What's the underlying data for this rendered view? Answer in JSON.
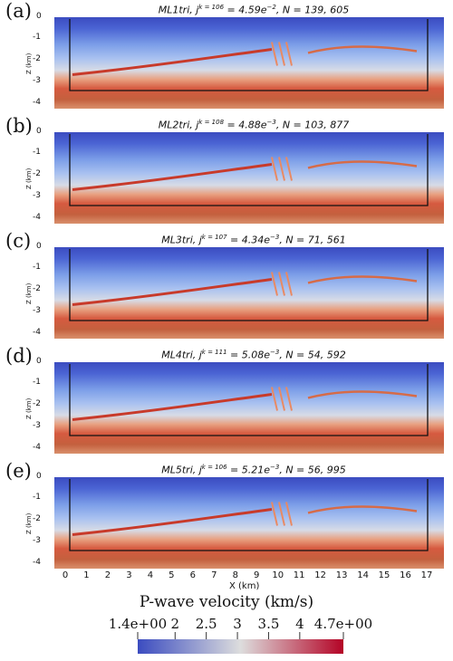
{
  "panels": [
    {
      "letter": "(a)",
      "method": "ML1tri",
      "k": "106",
      "j_value": "4.59e",
      "j_exp": "−2",
      "N": "139, 605"
    },
    {
      "letter": "(b)",
      "method": "ML2tri",
      "k": "108",
      "j_value": "4.88e",
      "j_exp": "−3",
      "N": "103, 877"
    },
    {
      "letter": "(c)",
      "method": "ML3tri",
      "k": "107",
      "j_value": "4.34e",
      "j_exp": "−3",
      "N": "71, 561"
    },
    {
      "letter": "(d)",
      "method": "ML4tri",
      "k": "111",
      "j_value": "5.08e",
      "j_exp": "−3",
      "N": "54, 592"
    },
    {
      "letter": "(e)",
      "method": "ML5tri",
      "k": "106",
      "j_value": "5.21e",
      "j_exp": "−3",
      "N": "56, 995"
    }
  ],
  "z_axis": {
    "label": "Z (km)",
    "ticks": [
      "0",
      "-1",
      "-2",
      "-3",
      "-4"
    ]
  },
  "x_axis": {
    "label": "X (km)",
    "ticks": [
      "0",
      "1",
      "2",
      "3",
      "4",
      "5",
      "6",
      "7",
      "8",
      "9",
      "10",
      "11",
      "12",
      "13",
      "14",
      "15",
      "16",
      "17"
    ]
  },
  "colorbar": {
    "title": "P-wave velocity (km/s)",
    "ticks": [
      "1.4e+00",
      "2",
      "2.5",
      "3",
      "3.5",
      "4",
      "4.7e+00"
    ],
    "tick_values": [
      1.4,
      2,
      2.5,
      3,
      3.5,
      4,
      4.7
    ],
    "range": [
      1.4,
      4.7
    ],
    "colors": [
      "#3b4cc0",
      "#dddddd",
      "#b40426"
    ]
  }
}
